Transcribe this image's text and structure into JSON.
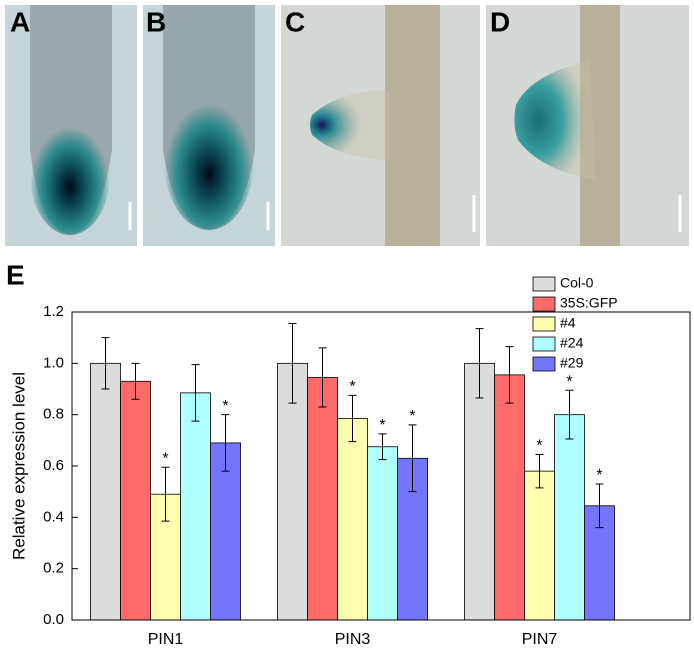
{
  "panels": {
    "labels": [
      "A",
      "B",
      "C",
      "D"
    ]
  },
  "chart_data": {
    "type": "bar",
    "panel_label": "E",
    "y_label": "Relative expression level",
    "categories": [
      "PIN1",
      "PIN3",
      "PIN7"
    ],
    "series": [
      {
        "name": "Col-0",
        "color": "#dcdcdc",
        "values": [
          1.0,
          1.0,
          1.0
        ],
        "errors": [
          0.1,
          0.155,
          0.135
        ]
      },
      {
        "name": "35S:GFP",
        "color": "#ff6b6b",
        "values": [
          0.93,
          0.945,
          0.955
        ],
        "errors": [
          0.07,
          0.115,
          0.11
        ]
      },
      {
        "name": "#4",
        "color": "#ffffb0",
        "values": [
          0.49,
          0.785,
          0.58
        ],
        "errors": [
          0.105,
          0.09,
          0.065
        ],
        "significance": [
          "*",
          "*",
          "*"
        ]
      },
      {
        "name": "#24",
        "color": "#b0ffff",
        "values": [
          0.885,
          0.675,
          0.8
        ],
        "errors": [
          0.11,
          0.05,
          0.095
        ],
        "significance": [
          null,
          "*",
          "*"
        ]
      },
      {
        "name": "#29",
        "color": "#7474ff",
        "values": [
          0.69,
          0.63,
          0.445
        ],
        "errors": [
          0.11,
          0.13,
          0.085
        ],
        "significance": [
          "*",
          "*",
          "*"
        ]
      }
    ],
    "ylim": [
      0,
      1.2
    ],
    "yticks": [
      {
        "value": 0,
        "label": "0.0"
      },
      0.2,
      0.4,
      0.6,
      0.8,
      {
        "value": 1,
        "label": "1.0"
      },
      1.2
    ],
    "legend": "top-right"
  }
}
